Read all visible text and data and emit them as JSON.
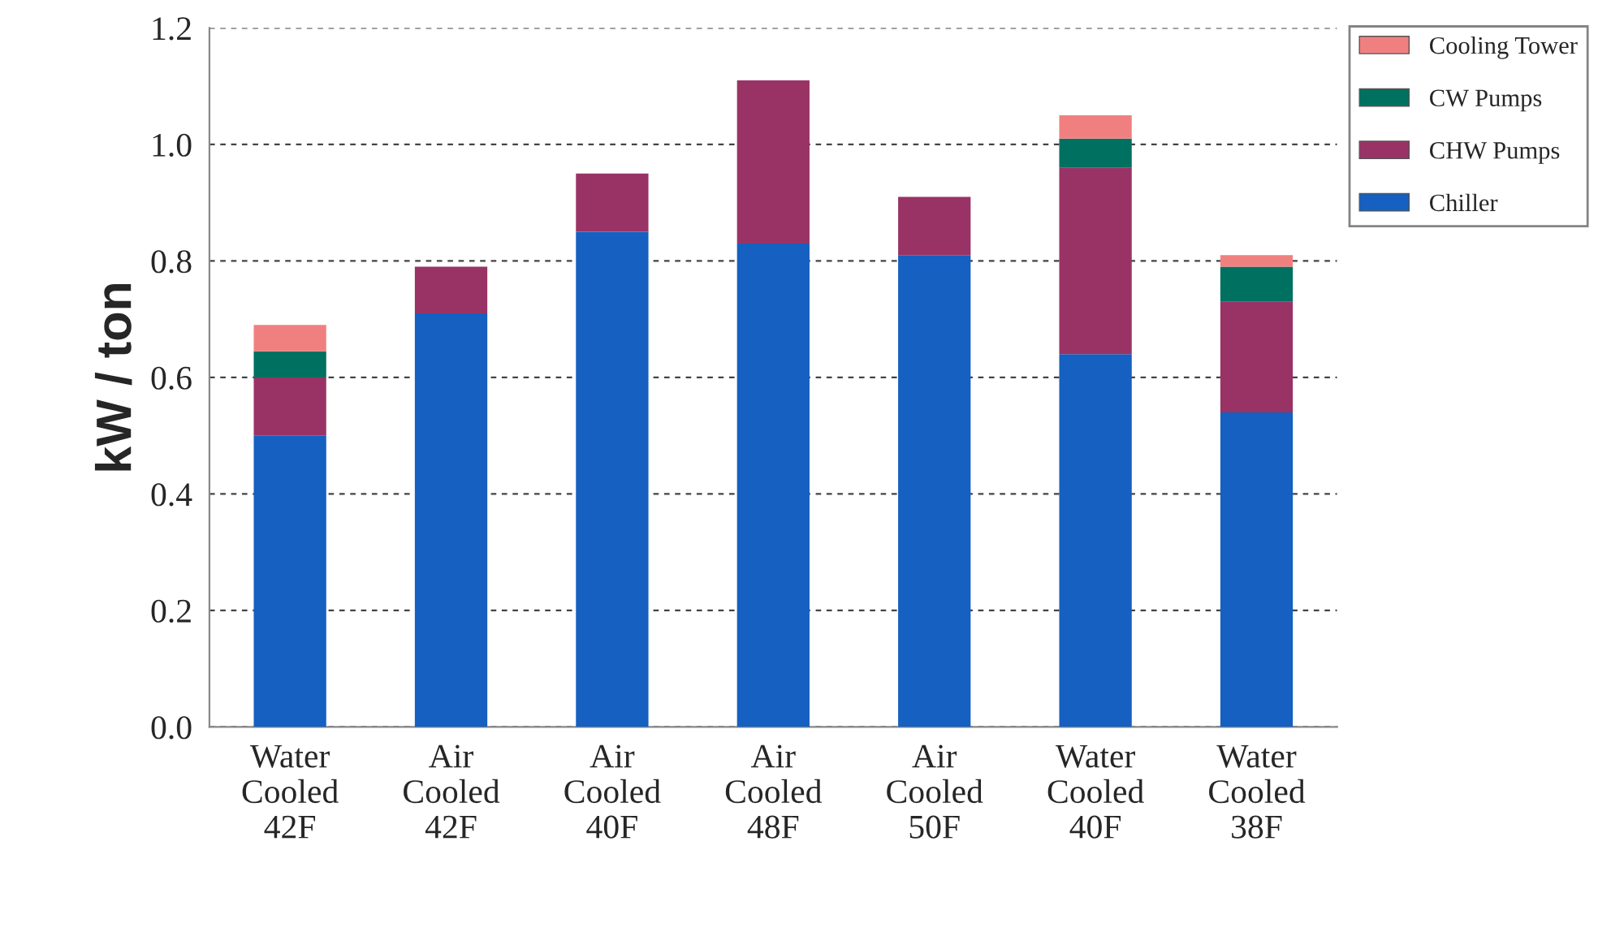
{
  "chart_data": {
    "type": "bar",
    "ylabel": "kW / ton",
    "stacked": true,
    "categories": [
      "Water\nCooled\n42F",
      "Air\nCooled\n42F",
      "Air\nCooled\n40F",
      "Air\nCooled\n48F",
      "Air\nCooled\n50F",
      "Water\nCooled\n40F",
      "Water\nCooled\n38F"
    ],
    "series": [
      {
        "name": "Chiller",
        "color": "#1560c0",
        "values": [
          0.5,
          0.71,
          0.85,
          0.83,
          0.81,
          0.64,
          0.54
        ]
      },
      {
        "name": "CHW Pumps",
        "color": "#993366",
        "values": [
          0.1,
          0.08,
          0.1,
          0.28,
          0.1,
          0.32,
          0.19
        ]
      },
      {
        "name": "CW Pumps",
        "color": "#007060",
        "values": [
          0.045,
          null,
          null,
          null,
          null,
          0.05,
          0.06
        ]
      },
      {
        "name": "Cooling Tower",
        "color": "#f08080",
        "values": [
          0.045,
          null,
          null,
          null,
          null,
          0.04,
          0.02
        ]
      }
    ],
    "ylim": [
      0,
      1.2
    ],
    "yticks": [
      {
        "value": 0,
        "label": "0.0"
      },
      0.2,
      0.4,
      0.6,
      0.8,
      {
        "value": 1,
        "label": "1.0"
      },
      1.2
    ],
    "grid": "y",
    "legend": "top right"
  }
}
